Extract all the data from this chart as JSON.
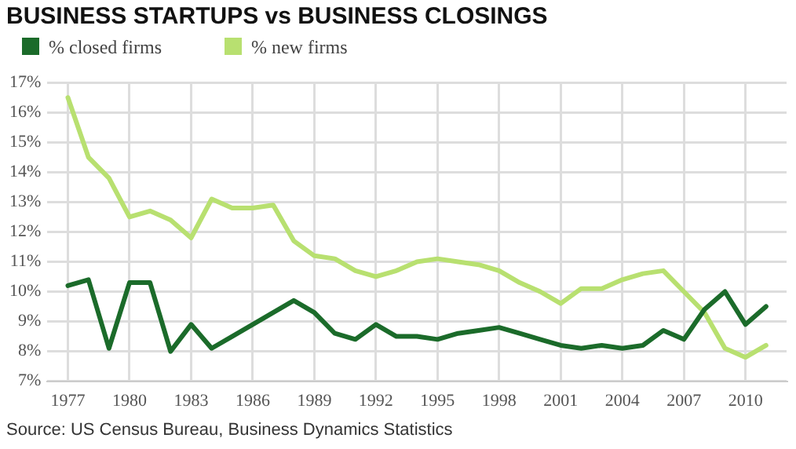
{
  "chart_data": {
    "type": "line",
    "title": "BUSINESS STARTUPS vs BUSINESS CLOSINGS",
    "x": [
      1977,
      1978,
      1979,
      1980,
      1981,
      1982,
      1983,
      1984,
      1985,
      1986,
      1987,
      1988,
      1989,
      1990,
      1991,
      1992,
      1993,
      1994,
      1995,
      1996,
      1997,
      1998,
      1999,
      2000,
      2001,
      2002,
      2003,
      2004,
      2005,
      2006,
      2007,
      2008,
      2009,
      2010,
      2011
    ],
    "series": [
      {
        "name": "% closed firms",
        "color": "#1b6b2a",
        "values": [
          10.2,
          10.4,
          8.1,
          10.3,
          10.3,
          8.0,
          8.9,
          8.1,
          8.5,
          8.9,
          9.3,
          9.7,
          9.3,
          8.6,
          8.4,
          8.9,
          8.5,
          8.5,
          8.4,
          8.6,
          8.7,
          8.8,
          8.6,
          8.4,
          8.2,
          8.1,
          8.2,
          8.1,
          8.2,
          8.7,
          8.4,
          9.4,
          10.0,
          8.9,
          9.5
        ]
      },
      {
        "name": "% new firms",
        "color": "#b8e070",
        "values": [
          16.5,
          14.5,
          13.8,
          12.5,
          12.7,
          12.4,
          11.8,
          13.1,
          12.8,
          12.8,
          12.9,
          11.7,
          11.2,
          11.1,
          10.7,
          10.5,
          10.7,
          11.0,
          11.1,
          11.0,
          10.9,
          10.7,
          10.3,
          10.0,
          9.6,
          10.1,
          10.1,
          10.4,
          10.6,
          10.7,
          10.0,
          9.3,
          8.1,
          7.8,
          8.2
        ]
      }
    ],
    "xlim": [
      1976,
      2012
    ],
    "xticks": [
      1977,
      1980,
      1983,
      1986,
      1989,
      1992,
      1995,
      1998,
      2001,
      2004,
      2007,
      2010
    ],
    "ylim": [
      7,
      17
    ],
    "yticks": [
      {
        "value": 7,
        "label": "7%"
      },
      {
        "value": 8,
        "label": "8%"
      },
      {
        "value": 9,
        "label": "9%"
      },
      {
        "value": 10,
        "label": "10%"
      },
      {
        "value": 11,
        "label": "11%"
      },
      {
        "value": 12,
        "label": "12%"
      },
      {
        "value": 13,
        "label": "13%"
      },
      {
        "value": 14,
        "label": "14%"
      },
      {
        "value": 15,
        "label": "15%"
      },
      {
        "value": 16,
        "label": "16%"
      },
      {
        "value": 17,
        "label": "17%"
      }
    ],
    "grid": true,
    "legend": "top left",
    "marker": "none",
    "line_style": "solid",
    "annotations": [
      "Source: US Census Bureau, Business Dynamics Statistics"
    ]
  }
}
